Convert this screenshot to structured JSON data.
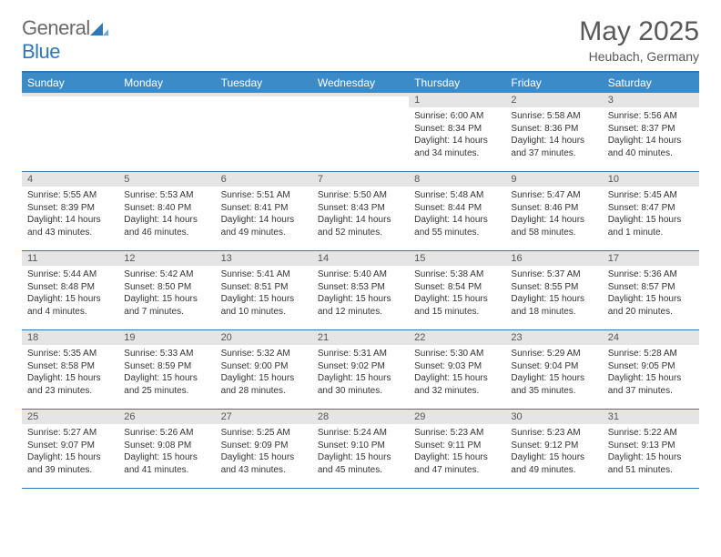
{
  "brand": {
    "name_a": "General",
    "name_b": "Blue"
  },
  "title": "May 2025",
  "location": "Heubach, Germany",
  "colors": {
    "header_bg": "#3b8bc8",
    "border": "#2e77b8",
    "daynum_bg": "#e5e5e5",
    "text": "#333333",
    "title": "#585858"
  },
  "weekdays": [
    "Sunday",
    "Monday",
    "Tuesday",
    "Wednesday",
    "Thursday",
    "Friday",
    "Saturday"
  ],
  "weeks": [
    [
      {
        "num": "",
        "lines": []
      },
      {
        "num": "",
        "lines": []
      },
      {
        "num": "",
        "lines": []
      },
      {
        "num": "",
        "lines": []
      },
      {
        "num": "1",
        "lines": [
          "Sunrise: 6:00 AM",
          "Sunset: 8:34 PM",
          "Daylight: 14 hours",
          "and 34 minutes."
        ]
      },
      {
        "num": "2",
        "lines": [
          "Sunrise: 5:58 AM",
          "Sunset: 8:36 PM",
          "Daylight: 14 hours",
          "and 37 minutes."
        ]
      },
      {
        "num": "3",
        "lines": [
          "Sunrise: 5:56 AM",
          "Sunset: 8:37 PM",
          "Daylight: 14 hours",
          "and 40 minutes."
        ]
      }
    ],
    [
      {
        "num": "4",
        "lines": [
          "Sunrise: 5:55 AM",
          "Sunset: 8:39 PM",
          "Daylight: 14 hours",
          "and 43 minutes."
        ]
      },
      {
        "num": "5",
        "lines": [
          "Sunrise: 5:53 AM",
          "Sunset: 8:40 PM",
          "Daylight: 14 hours",
          "and 46 minutes."
        ]
      },
      {
        "num": "6",
        "lines": [
          "Sunrise: 5:51 AM",
          "Sunset: 8:41 PM",
          "Daylight: 14 hours",
          "and 49 minutes."
        ]
      },
      {
        "num": "7",
        "lines": [
          "Sunrise: 5:50 AM",
          "Sunset: 8:43 PM",
          "Daylight: 14 hours",
          "and 52 minutes."
        ]
      },
      {
        "num": "8",
        "lines": [
          "Sunrise: 5:48 AM",
          "Sunset: 8:44 PM",
          "Daylight: 14 hours",
          "and 55 minutes."
        ]
      },
      {
        "num": "9",
        "lines": [
          "Sunrise: 5:47 AM",
          "Sunset: 8:46 PM",
          "Daylight: 14 hours",
          "and 58 minutes."
        ]
      },
      {
        "num": "10",
        "lines": [
          "Sunrise: 5:45 AM",
          "Sunset: 8:47 PM",
          "Daylight: 15 hours",
          "and 1 minute."
        ]
      }
    ],
    [
      {
        "num": "11",
        "lines": [
          "Sunrise: 5:44 AM",
          "Sunset: 8:48 PM",
          "Daylight: 15 hours",
          "and 4 minutes."
        ]
      },
      {
        "num": "12",
        "lines": [
          "Sunrise: 5:42 AM",
          "Sunset: 8:50 PM",
          "Daylight: 15 hours",
          "and 7 minutes."
        ]
      },
      {
        "num": "13",
        "lines": [
          "Sunrise: 5:41 AM",
          "Sunset: 8:51 PM",
          "Daylight: 15 hours",
          "and 10 minutes."
        ]
      },
      {
        "num": "14",
        "lines": [
          "Sunrise: 5:40 AM",
          "Sunset: 8:53 PM",
          "Daylight: 15 hours",
          "and 12 minutes."
        ]
      },
      {
        "num": "15",
        "lines": [
          "Sunrise: 5:38 AM",
          "Sunset: 8:54 PM",
          "Daylight: 15 hours",
          "and 15 minutes."
        ]
      },
      {
        "num": "16",
        "lines": [
          "Sunrise: 5:37 AM",
          "Sunset: 8:55 PM",
          "Daylight: 15 hours",
          "and 18 minutes."
        ]
      },
      {
        "num": "17",
        "lines": [
          "Sunrise: 5:36 AM",
          "Sunset: 8:57 PM",
          "Daylight: 15 hours",
          "and 20 minutes."
        ]
      }
    ],
    [
      {
        "num": "18",
        "lines": [
          "Sunrise: 5:35 AM",
          "Sunset: 8:58 PM",
          "Daylight: 15 hours",
          "and 23 minutes."
        ]
      },
      {
        "num": "19",
        "lines": [
          "Sunrise: 5:33 AM",
          "Sunset: 8:59 PM",
          "Daylight: 15 hours",
          "and 25 minutes."
        ]
      },
      {
        "num": "20",
        "lines": [
          "Sunrise: 5:32 AM",
          "Sunset: 9:00 PM",
          "Daylight: 15 hours",
          "and 28 minutes."
        ]
      },
      {
        "num": "21",
        "lines": [
          "Sunrise: 5:31 AM",
          "Sunset: 9:02 PM",
          "Daylight: 15 hours",
          "and 30 minutes."
        ]
      },
      {
        "num": "22",
        "lines": [
          "Sunrise: 5:30 AM",
          "Sunset: 9:03 PM",
          "Daylight: 15 hours",
          "and 32 minutes."
        ]
      },
      {
        "num": "23",
        "lines": [
          "Sunrise: 5:29 AM",
          "Sunset: 9:04 PM",
          "Daylight: 15 hours",
          "and 35 minutes."
        ]
      },
      {
        "num": "24",
        "lines": [
          "Sunrise: 5:28 AM",
          "Sunset: 9:05 PM",
          "Daylight: 15 hours",
          "and 37 minutes."
        ]
      }
    ],
    [
      {
        "num": "25",
        "lines": [
          "Sunrise: 5:27 AM",
          "Sunset: 9:07 PM",
          "Daylight: 15 hours",
          "and 39 minutes."
        ]
      },
      {
        "num": "26",
        "lines": [
          "Sunrise: 5:26 AM",
          "Sunset: 9:08 PM",
          "Daylight: 15 hours",
          "and 41 minutes."
        ]
      },
      {
        "num": "27",
        "lines": [
          "Sunrise: 5:25 AM",
          "Sunset: 9:09 PM",
          "Daylight: 15 hours",
          "and 43 minutes."
        ]
      },
      {
        "num": "28",
        "lines": [
          "Sunrise: 5:24 AM",
          "Sunset: 9:10 PM",
          "Daylight: 15 hours",
          "and 45 minutes."
        ]
      },
      {
        "num": "29",
        "lines": [
          "Sunrise: 5:23 AM",
          "Sunset: 9:11 PM",
          "Daylight: 15 hours",
          "and 47 minutes."
        ]
      },
      {
        "num": "30",
        "lines": [
          "Sunrise: 5:23 AM",
          "Sunset: 9:12 PM",
          "Daylight: 15 hours",
          "and 49 minutes."
        ]
      },
      {
        "num": "31",
        "lines": [
          "Sunrise: 5:22 AM",
          "Sunset: 9:13 PM",
          "Daylight: 15 hours",
          "and 51 minutes."
        ]
      }
    ]
  ]
}
